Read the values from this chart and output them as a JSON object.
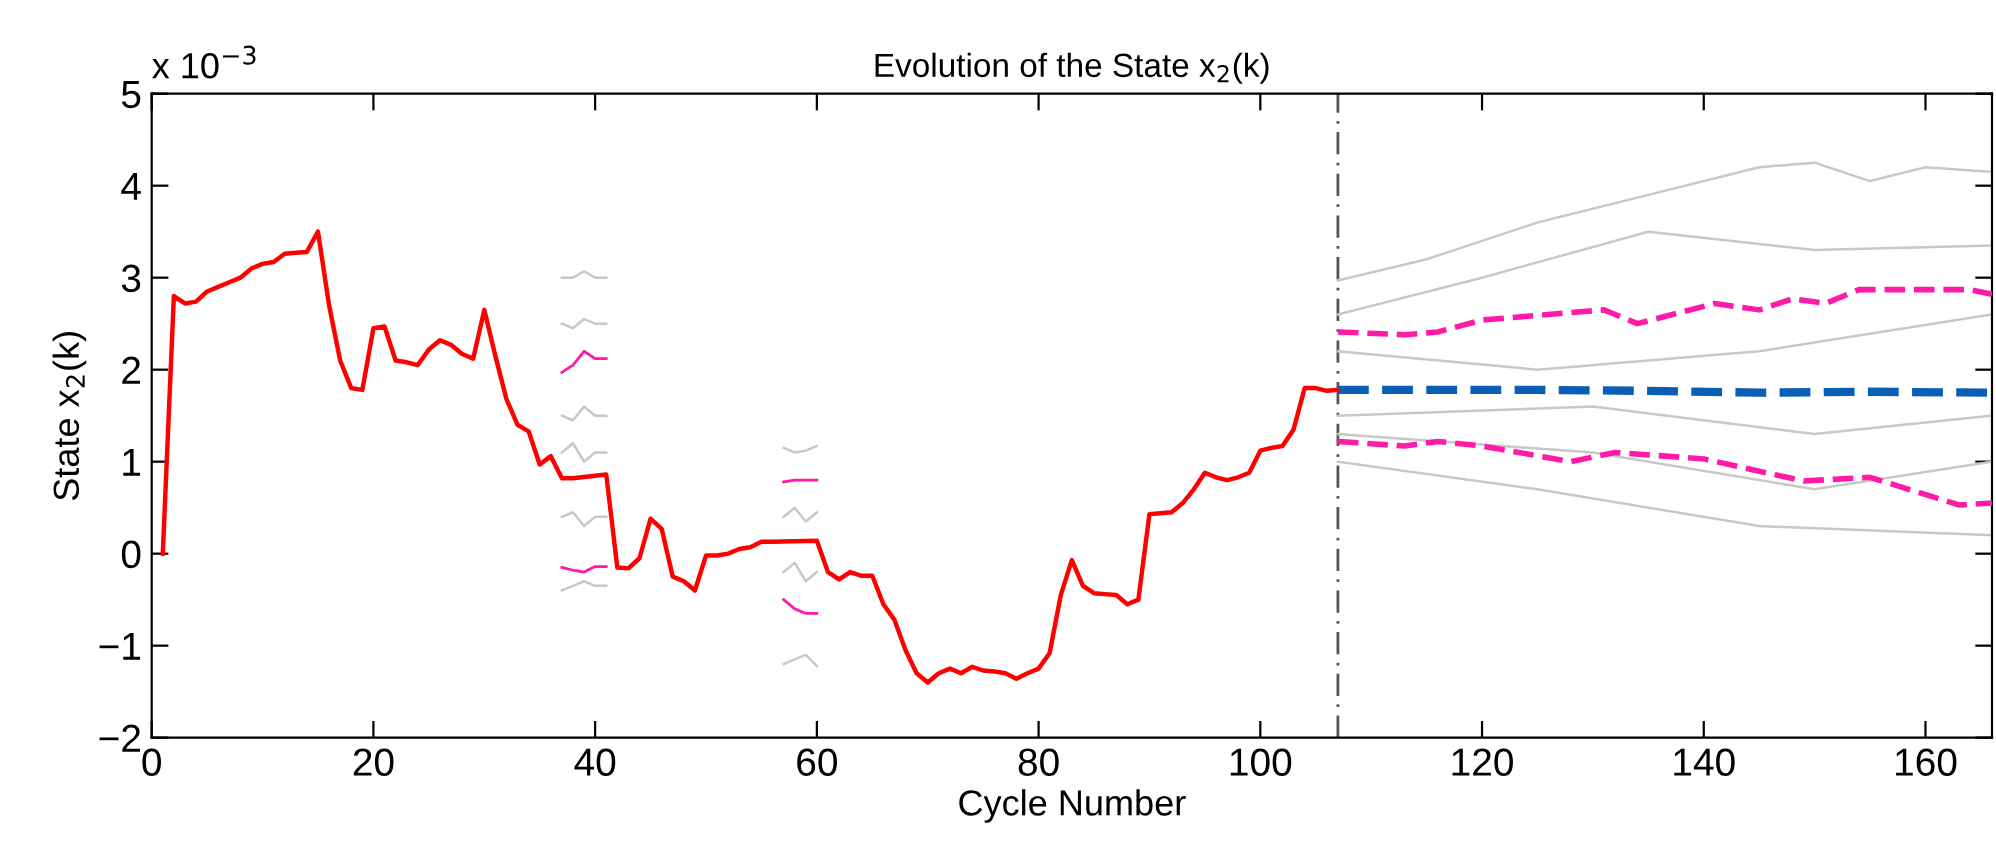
{
  "chart_data": {
    "type": "line",
    "title": "Evolution of the State x$_{2}$(k)",
    "xlabel": "Cycle Number",
    "ylabel": "State x$_{2}$(k)",
    "annotations": [
      "x 10$^{−3}$"
    ],
    "xlim": [
      0,
      166
    ],
    "xticks": [
      0,
      20,
      40,
      60,
      80,
      100,
      120,
      140,
      160
    ],
    "ylim": [
      -2,
      5
    ],
    "yticks": [
      -2,
      -1,
      0,
      1,
      2,
      3,
      4,
      5
    ],
    "grid": false,
    "legend": false,
    "marker": "none",
    "ref_lines": [
      {
        "axis": "x",
        "value": 107,
        "label": null,
        "color": "#555555",
        "line_style": "dashed"
      }
    ],
    "series": [
      {
        "color": "#c8c8c8",
        "x": [
          37,
          38,
          39,
          40,
          41
        ],
        "values": [
          3.0,
          3.0,
          3.07,
          3.0,
          3.0
        ],
        "line_style": "solid"
      },
      {
        "color": "#c8c8c8",
        "x": [
          37,
          38,
          39,
          40,
          41
        ],
        "values": [
          2.5,
          2.45,
          2.55,
          2.5,
          2.5
        ],
        "line_style": "solid"
      },
      {
        "color": "#c8c8c8",
        "x": [
          37,
          38,
          39,
          40,
          41
        ],
        "values": [
          1.5,
          1.45,
          1.6,
          1.5,
          1.5
        ],
        "line_style": "solid"
      },
      {
        "color": "#c8c8c8",
        "x": [
          37,
          38,
          39,
          40,
          41
        ],
        "values": [
          1.1,
          1.2,
          1.0,
          1.1,
          1.1
        ],
        "line_style": "solid"
      },
      {
        "color": "#c8c8c8",
        "x": [
          37,
          38,
          39,
          40,
          41
        ],
        "values": [
          0.4,
          0.45,
          0.3,
          0.4,
          0.4
        ],
        "line_style": "solid"
      },
      {
        "color": "#c8c8c8",
        "x": [
          37,
          38,
          39,
          40,
          41
        ],
        "values": [
          -0.4,
          -0.35,
          -0.3,
          -0.35,
          -0.35
        ],
        "line_style": "solid"
      },
      {
        "color": "#c8c8c8",
        "x": [
          57,
          58,
          59,
          60
        ],
        "values": [
          1.15,
          1.1,
          1.12,
          1.17
        ],
        "line_style": "solid"
      },
      {
        "color": "#c8c8c8",
        "x": [
          57,
          58,
          59,
          60
        ],
        "values": [
          0.4,
          0.5,
          0.35,
          0.45
        ],
        "line_style": "solid"
      },
      {
        "color": "#c8c8c8",
        "x": [
          57,
          58,
          59,
          60
        ],
        "values": [
          -0.2,
          -0.1,
          -0.3,
          -0.2
        ],
        "line_style": "solid"
      },
      {
        "color": "#c8c8c8",
        "x": [
          57,
          58,
          59,
          60
        ],
        "values": [
          -1.2,
          -1.15,
          -1.1,
          -1.22
        ],
        "line_style": "solid"
      },
      {
        "color": "#c8c8c8",
        "x": [
          107,
          115,
          125,
          135,
          145,
          150,
          155,
          160,
          166
        ],
        "values": [
          2.97,
          3.2,
          3.6,
          3.9,
          4.2,
          4.25,
          4.05,
          4.2,
          4.15
        ],
        "line_style": "solid"
      },
      {
        "color": "#c8c8c8",
        "x": [
          107,
          120,
          135,
          150,
          166
        ],
        "values": [
          2.6,
          3.0,
          3.5,
          3.3,
          3.35
        ],
        "line_style": "solid"
      },
      {
        "color": "#c8c8c8",
        "x": [
          107,
          125,
          145,
          166
        ],
        "values": [
          2.2,
          2.0,
          2.2,
          2.6
        ],
        "line_style": "solid"
      },
      {
        "color": "#c8c8c8",
        "x": [
          107,
          130,
          150,
          166
        ],
        "values": [
          1.5,
          1.6,
          1.3,
          1.5
        ],
        "line_style": "solid"
      },
      {
        "color": "#c8c8c8",
        "x": [
          107,
          130,
          150,
          166
        ],
        "values": [
          1.3,
          1.1,
          0.7,
          1.0
        ],
        "line_style": "solid"
      },
      {
        "color": "#c8c8c8",
        "x": [
          107,
          125,
          145,
          166
        ],
        "values": [
          1.0,
          0.7,
          0.3,
          0.2
        ],
        "line_style": "solid"
      },
      {
        "color": "#ff1aa8",
        "x": [
          37,
          38,
          39,
          40,
          41
        ],
        "values": [
          1.97,
          2.05,
          2.2,
          2.12,
          2.12
        ],
        "line_style": "solid"
      },
      {
        "color": "#ff1aa8",
        "x": [
          37,
          38,
          39,
          40,
          41
        ],
        "values": [
          -0.15,
          -0.18,
          -0.2,
          -0.14,
          -0.14
        ],
        "line_style": "solid"
      },
      {
        "color": "#ff1aa8",
        "x": [
          57,
          58,
          59,
          60
        ],
        "values": [
          0.78,
          0.8,
          0.8,
          0.8
        ],
        "line_style": "solid"
      },
      {
        "color": "#ff1aa8",
        "x": [
          57,
          58,
          59,
          60
        ],
        "values": [
          -0.5,
          -0.6,
          -0.65,
          -0.65
        ],
        "line_style": "solid"
      },
      {
        "color": "#ff1aa8",
        "x": [
          107,
          113,
          116,
          120,
          128,
          131,
          134,
          141,
          145,
          148,
          151,
          154,
          158,
          164,
          166
        ],
        "values": [
          2.41,
          2.38,
          2.41,
          2.54,
          2.62,
          2.65,
          2.5,
          2.72,
          2.65,
          2.77,
          2.72,
          2.87,
          2.87,
          2.87,
          2.82
        ],
        "line_style": "dashed"
      },
      {
        "color": "#ff1aa8",
        "x": [
          107,
          113,
          116,
          120,
          128,
          132,
          140,
          149,
          155,
          163,
          166
        ],
        "values": [
          1.22,
          1.17,
          1.22,
          1.17,
          1.0,
          1.1,
          1.03,
          0.79,
          0.83,
          0.53,
          0.55
        ],
        "line_style": "dashed"
      },
      {
        "color": "#0a5fb4",
        "x": [
          107,
          115,
          125,
          135,
          145,
          155,
          166
        ],
        "values": [
          1.78,
          1.78,
          1.78,
          1.77,
          1.75,
          1.76,
          1.75
        ],
        "line_style": "dashed"
      },
      {
        "color": "#ff0000",
        "line_style": "solid",
        "x": [
          1,
          2,
          3,
          4,
          5,
          6,
          7,
          8,
          9,
          10,
          11,
          12,
          13,
          14,
          15,
          16,
          17,
          18,
          19,
          20,
          21,
          22,
          23,
          24,
          25,
          26,
          27,
          28,
          29,
          30,
          31,
          32,
          33,
          34,
          35,
          36,
          37,
          38,
          41,
          42,
          43,
          44,
          45,
          46,
          47,
          48,
          49,
          50,
          51,
          52,
          53,
          54,
          55,
          56,
          60,
          61,
          62,
          63,
          64,
          65,
          66,
          67,
          68,
          69,
          70,
          71,
          72,
          73,
          74,
          75,
          76,
          77,
          78,
          79,
          80,
          81,
          82,
          83,
          84,
          85,
          86,
          87,
          88,
          89,
          90,
          91,
          92,
          93,
          94,
          95,
          96,
          97,
          98,
          99,
          100,
          101,
          102,
          103,
          104,
          105,
          106,
          107
        ],
        "values": [
          0,
          2.8,
          2.72,
          2.74,
          2.85,
          2.9,
          2.95,
          3.0,
          3.1,
          3.15,
          3.17,
          3.26,
          3.27,
          3.28,
          3.5,
          2.7,
          2.1,
          1.8,
          1.78,
          2.45,
          2.47,
          2.1,
          2.08,
          2.05,
          2.22,
          2.32,
          2.27,
          2.17,
          2.12,
          2.65,
          2.15,
          1.68,
          1.4,
          1.33,
          0.97,
          1.06,
          0.82,
          0.82,
          0.86,
          -0.15,
          -0.16,
          -0.05,
          0.38,
          0.27,
          -0.25,
          -0.3,
          -0.4,
          -0.02,
          -0.02,
          0.0,
          0.05,
          0.07,
          0.13,
          0.13,
          0.14,
          -0.2,
          -0.28,
          -0.2,
          -0.24,
          -0.24,
          -0.55,
          -0.72,
          -1.05,
          -1.3,
          -1.4,
          -1.3,
          -1.25,
          -1.3,
          -1.23,
          -1.27,
          -1.28,
          -1.3,
          -1.36,
          -1.3,
          -1.25,
          -1.08,
          -0.45,
          -0.07,
          -0.35,
          -0.43,
          -0.44,
          -0.45,
          -0.55,
          -0.5,
          0.43,
          0.44,
          0.45,
          0.55,
          0.7,
          0.88,
          0.83,
          0.8,
          0.83,
          0.88,
          1.12,
          1.15,
          1.17,
          1.35,
          1.8,
          1.8,
          1.77,
          1.78
        ]
      }
    ]
  }
}
